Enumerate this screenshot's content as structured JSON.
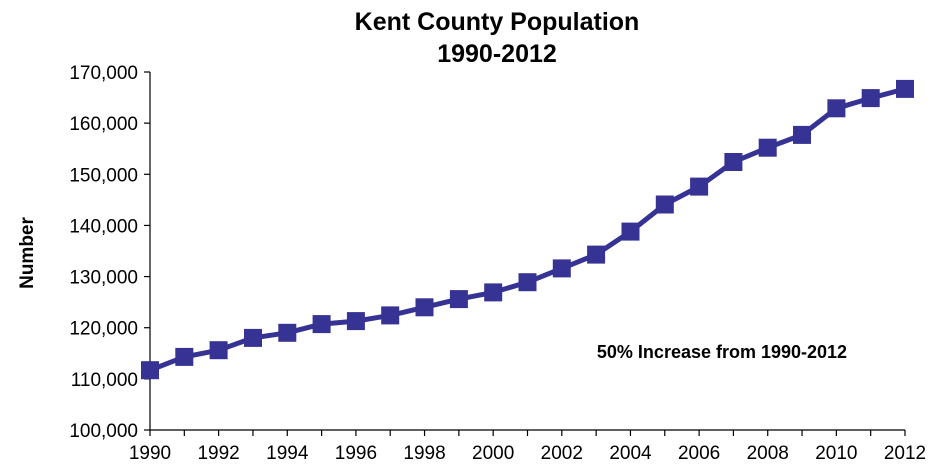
{
  "chart_data": {
    "type": "line",
    "title": [
      "Kent County Population",
      "1990-2012"
    ],
    "xlabel": "",
    "ylabel": "Number",
    "x": [
      1990,
      1991,
      1992,
      1993,
      1994,
      1995,
      1996,
      1997,
      1998,
      1999,
      2000,
      2001,
      2002,
      2003,
      2004,
      2005,
      2006,
      2007,
      2008,
      2009,
      2010,
      2011,
      2012
    ],
    "x_tick_labels": [
      "1990",
      "1992",
      "1994",
      "1996",
      "1998",
      "2000",
      "2002",
      "2004",
      "2006",
      "2008",
      "2010",
      "2012"
    ],
    "y_tick_labels": [
      "100,000",
      "110,000",
      "120,000",
      "130,000",
      "140,000",
      "150,000",
      "160,000",
      "170,000"
    ],
    "ylim": [
      100000,
      170000
    ],
    "xlim": [
      1990,
      2012
    ],
    "grid": false,
    "series": [
      {
        "values": [
          111700,
          114300,
          115600,
          118000,
          119000,
          120700,
          121300,
          122400,
          124000,
          125600,
          126900,
          128900,
          131600,
          134300,
          138800,
          144100,
          147600,
          152400,
          155200,
          157700,
          162900,
          164900,
          166700
        ],
        "color": "#363394",
        "marker": "square"
      }
    ],
    "annotation": "50% Increase from 1990-2012"
  }
}
